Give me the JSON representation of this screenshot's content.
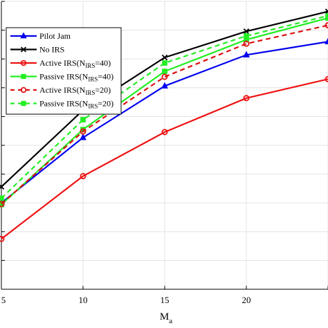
{
  "chart_data": {
    "type": "line",
    "xlabel": "M",
    "xlabel_subscript": "a",
    "ylabel": "",
    "x": [
      5,
      10,
      15,
      20,
      25
    ],
    "xlim": [
      5,
      25
    ],
    "ylim": [
      0,
      1
    ],
    "x_ticks": [
      "5",
      "10",
      "15",
      "20"
    ],
    "grid": true,
    "legend_position": "top-left",
    "series": [
      {
        "name": "Pilot Jam",
        "legend_base": "Pilot Jam",
        "legend_sub": "",
        "legend_tail": "",
        "color": "#0000ee",
        "style": "solid",
        "marker": "triangle",
        "values": [
          0.3,
          0.527,
          0.706,
          0.814,
          0.86
        ]
      },
      {
        "name": "No IRS",
        "legend_base": "No IRS",
        "legend_sub": "",
        "legend_tail": "",
        "color": "#000000",
        "style": "solid",
        "marker": "x",
        "values": [
          0.356,
          0.622,
          0.805,
          0.896,
          0.965
        ]
      },
      {
        "name": "Active IRS(NIRS=40)",
        "legend_base": "Active IRS(N",
        "legend_sub": "IRS",
        "legend_tail": "=40)",
        "color": "#ee1111",
        "style": "solid",
        "marker": "circle",
        "values": [
          0.175,
          0.393,
          0.546,
          0.664,
          0.73
        ]
      },
      {
        "name": "Passive IRS(NIRS=40)",
        "legend_base": "Passive IRS(N",
        "legend_sub": "IRS",
        "legend_tail": "=40)",
        "color": "#22ee22",
        "style": "solid",
        "marker": "square",
        "values": [
          0.294,
          0.555,
          0.757,
          0.867,
          0.942
        ]
      },
      {
        "name": "Active IRS(NIRS=20)",
        "legend_base": "Active IRS(N",
        "legend_sub": "IRS",
        "legend_tail": "=20)",
        "color": "#dd1111",
        "style": "dashed",
        "marker": "circle",
        "values": [
          0.296,
          0.548,
          0.738,
          0.853,
          0.917
        ]
      },
      {
        "name": "Passive IRS(NIRS=20)",
        "legend_base": "Passive IRS(N",
        "legend_sub": "IRS",
        "legend_tail": "=20)",
        "color": "#22ee22",
        "style": "dashed",
        "marker": "square",
        "values": [
          0.316,
          0.589,
          0.786,
          0.88,
          0.95
        ]
      }
    ]
  }
}
